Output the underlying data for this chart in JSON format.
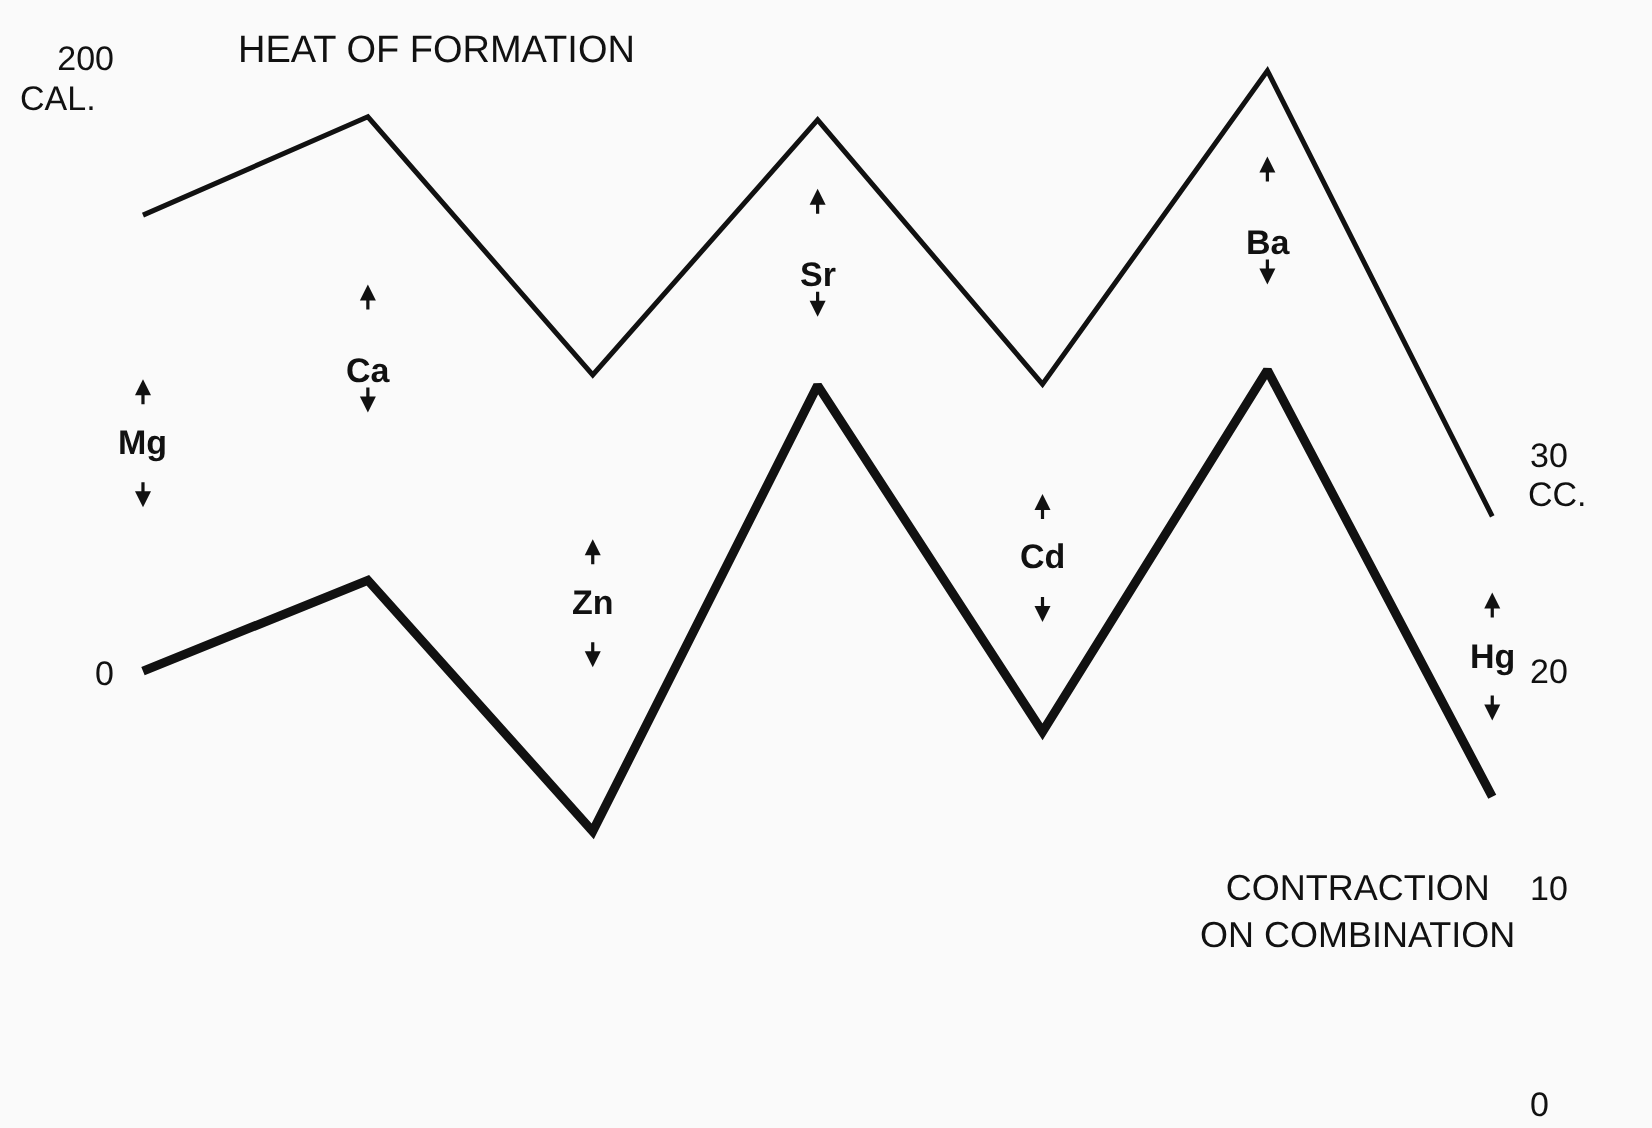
{
  "chart_data": {
    "type": "line",
    "categories": [
      "Mg",
      "Ca",
      "Zn",
      "Sr",
      "Cd",
      "Ba",
      "Hg"
    ],
    "series": [
      {
        "name": "HEAT OF FORMATION",
        "color": "#111111",
        "values": [
          149,
          181,
          97,
          180,
          94,
          196,
          51
        ]
      },
      {
        "name": "CONTRACTION ON COMBINATION",
        "color": "#111111",
        "axis": "y2",
        "values": [
          20,
          24.2,
          12.6,
          33.2,
          17.2,
          33.9,
          14.2
        ]
      }
    ],
    "ylabel": "CAL.",
    "y2label": "CC.",
    "ylim": [
      -148,
      219
    ],
    "yticks": [
      0,
      200
    ],
    "y2lim": [
      -1.1,
      51
    ],
    "y2ticks": [
      0,
      10,
      20,
      30
    ],
    "tick_labels": "y",
    "grid": false,
    "legend": false,
    "marker": "none",
    "line_style": "solid"
  }
}
